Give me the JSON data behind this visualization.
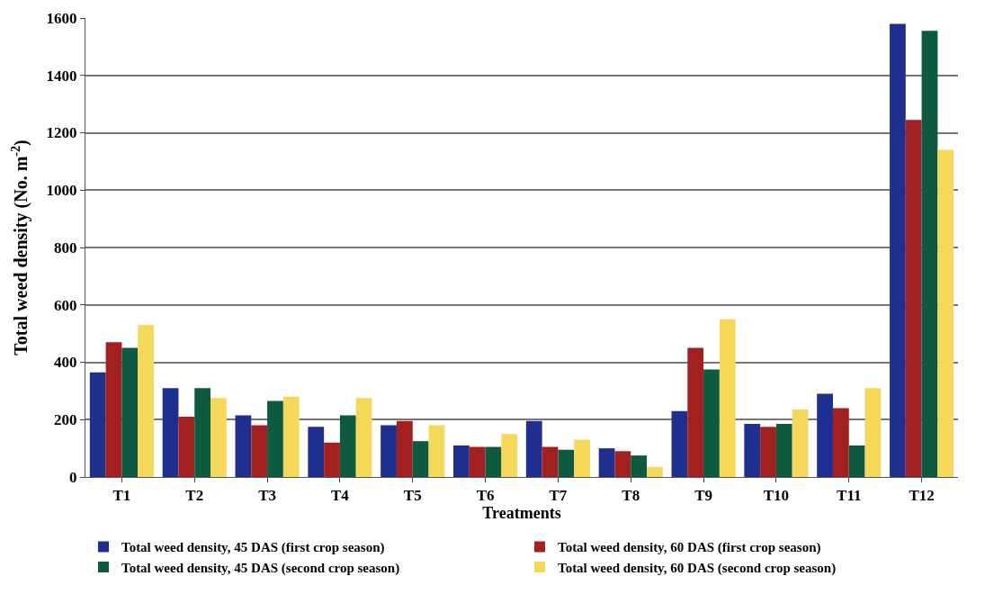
{
  "chart_data": {
    "type": "bar",
    "xlabel": "Treatments",
    "ylabel": "Total weed density (No. m$^{-2}$)",
    "categories": [
      "T1",
      "T2",
      "T3",
      "T4",
      "T5",
      "T6",
      "T7",
      "T8",
      "T9",
      "T10",
      "T11",
      "T12"
    ],
    "series": [
      {
        "name": "Total weed density, 45 DAS (first crop season)",
        "color": "#1f2f8f",
        "values": [
          365,
          310,
          215,
          175,
          180,
          110,
          195,
          100,
          230,
          185,
          290,
          1580
        ]
      },
      {
        "name": "Total weed density, 60 DAS (first crop season)",
        "color": "#a32020",
        "values": [
          470,
          210,
          180,
          120,
          195,
          105,
          105,
          90,
          450,
          175,
          240,
          1245
        ]
      },
      {
        "name": "Total weed density, 45 DAS (second crop season)",
        "color": "#0d5a40",
        "values": [
          450,
          310,
          265,
          215,
          125,
          105,
          95,
          75,
          375,
          185,
          110,
          1555
        ]
      },
      {
        "name": "Total weed density, 60 DAS (second crop season)",
        "color": "#f5d75a",
        "values": [
          530,
          275,
          280,
          275,
          180,
          150,
          130,
          35,
          550,
          235,
          310,
          1140
        ]
      }
    ],
    "ylim": [
      0,
      1600
    ],
    "yticks": [
      0,
      200,
      400,
      600,
      800,
      1000,
      1200,
      1400,
      1600
    ],
    "grid": "y",
    "legend": "bottom"
  }
}
